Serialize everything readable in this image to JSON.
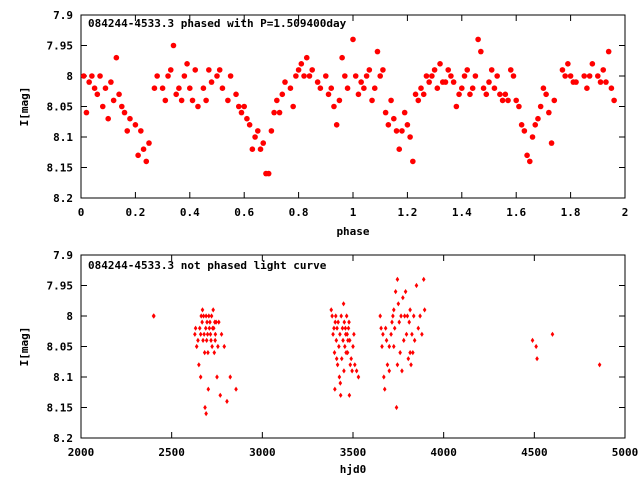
{
  "chart_data": [
    {
      "type": "scatter",
      "title": "084244-4533.3 phased with P=1.509400day",
      "xlabel": "phase",
      "ylabel": "I[mag]",
      "xlim": [
        0,
        2
      ],
      "ylim": [
        8.2,
        7.9
      ],
      "y_inverted": true,
      "grid": false,
      "marker_color": "#ff0000",
      "marker": "filled-circle",
      "xticks": [
        0,
        0.2,
        0.4,
        0.6,
        0.8,
        1,
        1.2,
        1.4,
        1.6,
        1.8,
        2
      ],
      "xtick_labels": [
        "0",
        "0.2",
        "0.4",
        "0.6",
        "0.8",
        "1",
        "1.2",
        "1.4",
        "1.6",
        "1.8",
        "2"
      ],
      "yticks": [
        7.9,
        7.95,
        8,
        8.05,
        8.1,
        8.15,
        8.2
      ],
      "ytick_labels": [
        "7.9",
        "7.95",
        "8",
        "8.05",
        "8.1",
        "8.15",
        "8.2"
      ],
      "points": [
        [
          0.01,
          8.0
        ],
        [
          0.02,
          8.06
        ],
        [
          0.03,
          8.01
        ],
        [
          0.04,
          8.0
        ],
        [
          0.05,
          8.02
        ],
        [
          0.06,
          8.03
        ],
        [
          0.07,
          8.0
        ],
        [
          0.08,
          8.05
        ],
        [
          0.09,
          8.02
        ],
        [
          0.1,
          8.07
        ],
        [
          0.11,
          8.01
        ],
        [
          0.12,
          8.04
        ],
        [
          0.13,
          7.97
        ],
        [
          0.14,
          8.03
        ],
        [
          0.15,
          8.05
        ],
        [
          0.16,
          8.06
        ],
        [
          0.17,
          8.09
        ],
        [
          0.18,
          8.07
        ],
        [
          0.2,
          8.08
        ],
        [
          0.21,
          8.13
        ],
        [
          0.22,
          8.09
        ],
        [
          0.23,
          8.12
        ],
        [
          0.24,
          8.14
        ],
        [
          0.25,
          8.11
        ],
        [
          0.27,
          8.02
        ],
        [
          0.28,
          8.0
        ],
        [
          0.3,
          8.02
        ],
        [
          0.31,
          8.04
        ],
        [
          0.32,
          8.0
        ],
        [
          0.33,
          7.99
        ],
        [
          0.34,
          7.95
        ],
        [
          0.35,
          8.03
        ],
        [
          0.36,
          8.02
        ],
        [
          0.37,
          8.04
        ],
        [
          0.38,
          8.0
        ],
        [
          0.39,
          7.98
        ],
        [
          0.4,
          8.02
        ],
        [
          0.41,
          8.04
        ],
        [
          0.42,
          7.99
        ],
        [
          0.43,
          8.05
        ],
        [
          0.45,
          8.02
        ],
        [
          0.46,
          8.04
        ],
        [
          0.47,
          7.99
        ],
        [
          0.48,
          8.01
        ],
        [
          0.5,
          8.0
        ],
        [
          0.51,
          7.99
        ],
        [
          0.52,
          8.02
        ],
        [
          0.54,
          8.04
        ],
        [
          0.55,
          8.0
        ],
        [
          0.57,
          8.03
        ],
        [
          0.58,
          8.05
        ],
        [
          0.59,
          8.06
        ],
        [
          0.6,
          8.05
        ],
        [
          0.61,
          8.07
        ],
        [
          0.62,
          8.08
        ],
        [
          0.63,
          8.12
        ],
        [
          0.64,
          8.1
        ],
        [
          0.65,
          8.09
        ],
        [
          0.66,
          8.12
        ],
        [
          0.67,
          8.11
        ],
        [
          0.68,
          8.16
        ],
        [
          0.69,
          8.16
        ],
        [
          0.7,
          8.09
        ],
        [
          0.71,
          8.06
        ],
        [
          0.72,
          8.04
        ],
        [
          0.73,
          8.06
        ],
        [
          0.74,
          8.03
        ],
        [
          0.75,
          8.01
        ],
        [
          0.77,
          8.02
        ],
        [
          0.78,
          8.05
        ],
        [
          0.79,
          8.0
        ],
        [
          0.8,
          7.99
        ],
        [
          0.81,
          7.98
        ],
        [
          0.82,
          8.0
        ],
        [
          0.83,
          7.97
        ],
        [
          0.84,
          8.0
        ],
        [
          0.85,
          7.99
        ],
        [
          0.87,
          8.01
        ],
        [
          0.88,
          8.02
        ],
        [
          0.9,
          8.0
        ],
        [
          0.91,
          8.03
        ],
        [
          0.92,
          8.02
        ],
        [
          0.93,
          8.05
        ],
        [
          0.94,
          8.08
        ],
        [
          0.95,
          8.04
        ],
        [
          0.96,
          7.97
        ],
        [
          0.97,
          8.0
        ],
        [
          0.98,
          8.02
        ],
        [
          1.0,
          7.94
        ],
        [
          1.01,
          8.0
        ],
        [
          1.02,
          8.03
        ],
        [
          1.03,
          8.01
        ],
        [
          1.04,
          8.02
        ],
        [
          1.05,
          8.0
        ],
        [
          1.06,
          7.99
        ],
        [
          1.07,
          8.04
        ],
        [
          1.08,
          8.02
        ],
        [
          1.09,
          7.96
        ],
        [
          1.1,
          8.0
        ],
        [
          1.11,
          7.99
        ],
        [
          1.12,
          8.06
        ],
        [
          1.13,
          8.08
        ],
        [
          1.14,
          8.04
        ],
        [
          1.15,
          8.07
        ],
        [
          1.16,
          8.09
        ],
        [
          1.17,
          8.12
        ],
        [
          1.18,
          8.09
        ],
        [
          1.19,
          8.06
        ],
        [
          1.2,
          8.08
        ],
        [
          1.21,
          8.1
        ],
        [
          1.22,
          8.14
        ],
        [
          1.23,
          8.03
        ],
        [
          1.24,
          8.04
        ],
        [
          1.25,
          8.02
        ],
        [
          1.26,
          8.03
        ],
        [
          1.27,
          8.0
        ],
        [
          1.28,
          8.01
        ],
        [
          1.29,
          8.0
        ],
        [
          1.3,
          7.99
        ],
        [
          1.31,
          8.02
        ],
        [
          1.32,
          7.98
        ],
        [
          1.33,
          8.01
        ],
        [
          1.34,
          8.01
        ],
        [
          1.35,
          7.99
        ],
        [
          1.36,
          8.0
        ],
        [
          1.37,
          8.01
        ],
        [
          1.38,
          8.05
        ],
        [
          1.39,
          8.03
        ],
        [
          1.4,
          8.02
        ],
        [
          1.41,
          8.0
        ],
        [
          1.42,
          7.99
        ],
        [
          1.43,
          8.03
        ],
        [
          1.44,
          8.02
        ],
        [
          1.45,
          8.0
        ],
        [
          1.46,
          7.94
        ],
        [
          1.47,
          7.96
        ],
        [
          1.48,
          8.02
        ],
        [
          1.49,
          8.03
        ],
        [
          1.5,
          8.01
        ],
        [
          1.51,
          7.99
        ],
        [
          1.52,
          8.02
        ],
        [
          1.53,
          8.0
        ],
        [
          1.54,
          8.03
        ],
        [
          1.55,
          8.04
        ],
        [
          1.56,
          8.03
        ],
        [
          1.57,
          8.04
        ],
        [
          1.58,
          7.99
        ],
        [
          1.59,
          8.0
        ],
        [
          1.6,
          8.04
        ],
        [
          1.61,
          8.05
        ],
        [
          1.62,
          8.08
        ],
        [
          1.63,
          8.09
        ],
        [
          1.64,
          8.13
        ],
        [
          1.65,
          8.14
        ],
        [
          1.66,
          8.1
        ],
        [
          1.67,
          8.08
        ],
        [
          1.68,
          8.07
        ],
        [
          1.69,
          8.05
        ],
        [
          1.7,
          8.02
        ],
        [
          1.71,
          8.03
        ],
        [
          1.72,
          8.06
        ],
        [
          1.73,
          8.11
        ],
        [
          1.74,
          8.04
        ],
        [
          1.77,
          7.99
        ],
        [
          1.78,
          8.0
        ],
        [
          1.79,
          7.98
        ],
        [
          1.8,
          8.0
        ],
        [
          1.81,
          8.01
        ],
        [
          1.82,
          8.01
        ],
        [
          1.85,
          8.0
        ],
        [
          1.86,
          8.02
        ],
        [
          1.87,
          8.0
        ],
        [
          1.88,
          7.98
        ],
        [
          1.9,
          8.0
        ],
        [
          1.91,
          8.01
        ],
        [
          1.92,
          7.99
        ],
        [
          1.93,
          8.01
        ],
        [
          1.94,
          7.96
        ],
        [
          1.95,
          8.02
        ],
        [
          1.96,
          8.04
        ]
      ]
    },
    {
      "type": "scatter",
      "title": "084244-4533.3 not phased light curve",
      "xlabel": "hjd0",
      "ylabel": "I[mag]",
      "xlim": [
        2000,
        5000
      ],
      "ylim": [
        8.2,
        7.9
      ],
      "y_inverted": true,
      "grid": false,
      "marker_color": "#ff0000",
      "marker": "small-diamond",
      "xticks": [
        2000,
        2500,
        3000,
        3500,
        4000,
        4500,
        5000
      ],
      "xtick_labels": [
        "2000",
        "2500",
        "3000",
        "3500",
        "4000",
        "4500",
        "5000"
      ],
      "yticks": [
        7.9,
        7.95,
        8,
        8.05,
        8.1,
        8.15,
        8.2
      ],
      "ytick_labels": [
        "7.9",
        "7.95",
        "8",
        "8.05",
        "8.1",
        "8.15",
        "8.2"
      ],
      "points": [
        [
          2400,
          8.0
        ],
        [
          2402,
          8.0
        ],
        [
          2628,
          8.03
        ],
        [
          2632,
          8.02
        ],
        [
          2638,
          8.05
        ],
        [
          2645,
          8.04
        ],
        [
          2650,
          8.08
        ],
        [
          2655,
          8.02
        ],
        [
          2660,
          8.03
        ],
        [
          2663,
          8.0
        ],
        [
          2668,
          8.01
        ],
        [
          2670,
          7.99
        ],
        [
          2673,
          8.04
        ],
        [
          2676,
          8.0
        ],
        [
          2679,
          8.03
        ],
        [
          2682,
          8.06
        ],
        [
          2684,
          8.15
        ],
        [
          2688,
          8.02
        ],
        [
          2690,
          8.0
        ],
        [
          2693,
          8.04
        ],
        [
          2695,
          8.01
        ],
        [
          2698,
          8.03
        ],
        [
          2700,
          8.06
        ],
        [
          2702,
          8.12
        ],
        [
          2705,
          8.0
        ],
        [
          2708,
          8.02
        ],
        [
          2711,
          8.01
        ],
        [
          2714,
          8.03
        ],
        [
          2717,
          8.04
        ],
        [
          2720,
          8.0
        ],
        [
          2723,
          8.05
        ],
        [
          2726,
          8.02
        ],
        [
          2729,
          7.99
        ],
        [
          2732,
          8.02
        ],
        [
          2735,
          8.06
        ],
        [
          2738,
          8.01
        ],
        [
          2741,
          8.03
        ],
        [
          2745,
          8.01
        ],
        [
          2750,
          8.1
        ],
        [
          2755,
          8.05
        ],
        [
          2760,
          8.01
        ],
        [
          2768,
          8.13
        ],
        [
          2775,
          8.03
        ],
        [
          2790,
          8.05
        ],
        [
          2805,
          8.14
        ],
        [
          2823,
          8.1
        ],
        [
          2855,
          8.12
        ],
        [
          2690,
          8.16
        ],
        [
          2660,
          8.1
        ],
        [
          2740,
          8.04
        ],
        [
          3380,
          7.99
        ],
        [
          3385,
          8.0
        ],
        [
          3390,
          8.03
        ],
        [
          3395,
          8.02
        ],
        [
          3398,
          8.06
        ],
        [
          3402,
          8.01
        ],
        [
          3405,
          8.0
        ],
        [
          3408,
          8.04
        ],
        [
          3412,
          8.02
        ],
        [
          3415,
          8.08
        ],
        [
          3418,
          8.01
        ],
        [
          3422,
          8.05
        ],
        [
          3425,
          8.1
        ],
        [
          3428,
          8.03
        ],
        [
          3432,
          8.13
        ],
        [
          3435,
          8.0
        ],
        [
          3438,
          8.07
        ],
        [
          3442,
          8.02
        ],
        [
          3445,
          8.04
        ],
        [
          3448,
          7.98
        ],
        [
          3452,
          8.01
        ],
        [
          3455,
          8.05
        ],
        [
          3458,
          8.02
        ],
        [
          3462,
          8.06
        ],
        [
          3465,
          8.0
        ],
        [
          3468,
          8.03
        ],
        [
          3472,
          8.04
        ],
        [
          3475,
          8.02
        ],
        [
          3478,
          8.01
        ],
        [
          3482,
          8.04
        ],
        [
          3485,
          8.08
        ],
        [
          3490,
          8.07
        ],
        [
          3495,
          8.09
        ],
        [
          3500,
          8.05
        ],
        [
          3505,
          8.03
        ],
        [
          3510,
          8.08
        ],
        [
          3520,
          8.09
        ],
        [
          3400,
          8.12
        ],
        [
          3410,
          8.07
        ],
        [
          3430,
          8.11
        ],
        [
          3450,
          8.09
        ],
        [
          3460,
          8.03
        ],
        [
          3470,
          8.06
        ],
        [
          3480,
          8.13
        ],
        [
          3530,
          8.1
        ],
        [
          3650,
          8.0
        ],
        [
          3655,
          8.02
        ],
        [
          3660,
          8.05
        ],
        [
          3665,
          8.03
        ],
        [
          3670,
          8.1
        ],
        [
          3675,
          8.12
        ],
        [
          3680,
          8.02
        ],
        [
          3685,
          8.04
        ],
        [
          3690,
          8.08
        ],
        [
          3700,
          8.05
        ],
        [
          3710,
          8.03
        ],
        [
          3715,
          8.01
        ],
        [
          3720,
          8.0
        ],
        [
          3725,
          7.99
        ],
        [
          3730,
          8.02
        ],
        [
          3735,
          7.96
        ],
        [
          3740,
          8.15
        ],
        [
          3745,
          8.08
        ],
        [
          3750,
          7.98
        ],
        [
          3755,
          8.01
        ],
        [
          3760,
          8.06
        ],
        [
          3765,
          8.0
        ],
        [
          3770,
          8.09
        ],
        [
          3775,
          7.97
        ],
        [
          3780,
          8.04
        ],
        [
          3785,
          8.0
        ],
        [
          3790,
          7.96
        ],
        [
          3795,
          8.03
        ],
        [
          3800,
          8.0
        ],
        [
          3805,
          8.07
        ],
        [
          3810,
          8.01
        ],
        [
          3815,
          7.99
        ],
        [
          3820,
          8.08
        ],
        [
          3825,
          8.03
        ],
        [
          3830,
          8.06
        ],
        [
          3835,
          8.0
        ],
        [
          3840,
          8.04
        ],
        [
          3850,
          7.95
        ],
        [
          3860,
          8.02
        ],
        [
          3870,
          8.0
        ],
        [
          3880,
          8.03
        ],
        [
          3890,
          7.94
        ],
        [
          3895,
          7.99
        ],
        [
          3745,
          7.94
        ],
        [
          3700,
          8.09
        ],
        [
          3725,
          8.05
        ],
        [
          3815,
          8.06
        ],
        [
          4490,
          8.04
        ],
        [
          4510,
          8.05
        ],
        [
          4515,
          8.07
        ],
        [
          4600,
          8.03
        ],
        [
          4860,
          8.08
        ]
      ]
    }
  ]
}
